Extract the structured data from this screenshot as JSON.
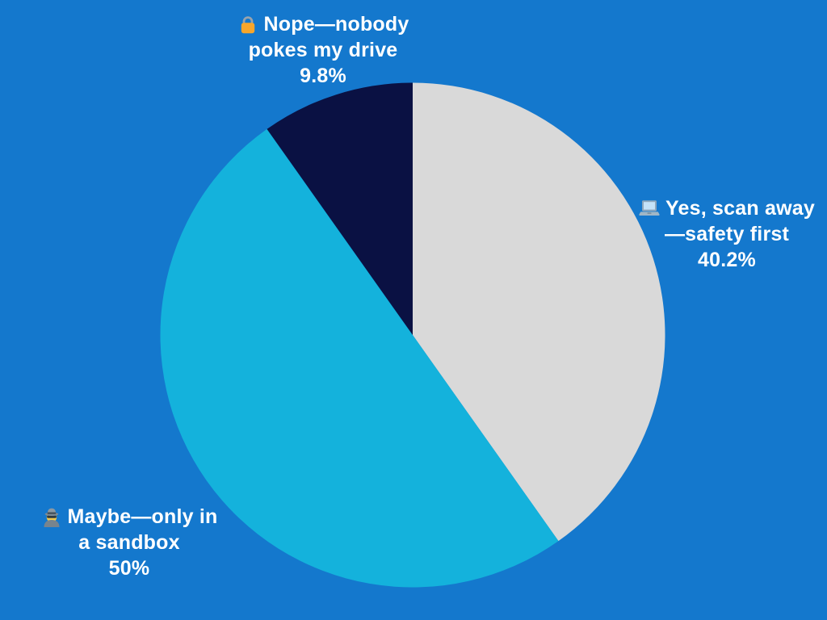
{
  "background_color": "#1478CD",
  "text_color": "#FFFFFF",
  "chart_data": {
    "type": "pie",
    "title": "",
    "legend_position": "none",
    "labels_outside": true,
    "start_angle_deg": 0,
    "direction": "clockwise",
    "slices": [
      {
        "label": "Yes, scan away—safety first",
        "value": 40.2,
        "pct_label": "40.2%",
        "color": "#D9D9D9",
        "icon": "laptop-icon",
        "emoji": "💻"
      },
      {
        "label": "Maybe—only in a sandbox",
        "value": 50,
        "pct_label": "50%",
        "color": "#14B2DC",
        "icon": "detective-icon",
        "emoji": "🕵️"
      },
      {
        "label": "Nope—nobody pokes my drive",
        "value": 9.8,
        "pct_label": "9.8%",
        "color": "#0A1143",
        "icon": "lock-icon",
        "emoji": "🔒"
      }
    ]
  },
  "labels": {
    "nope": {
      "line1": "Nope—nobody",
      "line2": "pokes my drive",
      "line3": "9.8%"
    },
    "yes": {
      "line1": "Yes, scan away",
      "line2": "—safety first",
      "line3": "40.2%"
    },
    "maybe": {
      "line1": "Maybe—only in",
      "line2": "a sandbox",
      "line3": "50%"
    }
  }
}
